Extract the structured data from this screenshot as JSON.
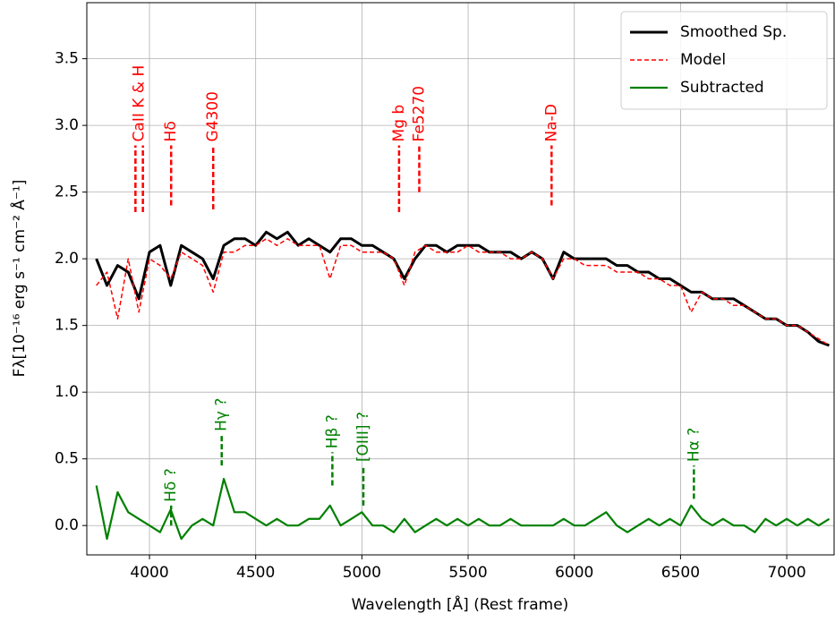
{
  "chart_data": {
    "type": "line",
    "xlabel": "Wavelength [Å] (Rest frame)",
    "ylabel": "Fλ[10⁻¹⁶ erg s⁻¹ cm⁻² Å⁻¹]",
    "xlim": [
      3705,
      7223
    ],
    "ylim": [
      -0.22,
      3.92
    ],
    "xticks": [
      4000,
      4500,
      5000,
      5500,
      6000,
      6500,
      7000
    ],
    "yticks": [
      {
        "value": 0,
        "label": "0.0"
      },
      0.5,
      {
        "value": 1,
        "label": "1.0"
      },
      1.5,
      {
        "value": 2,
        "label": "2.0"
      },
      2.5,
      {
        "value": 3,
        "label": "3.0"
      },
      3.5
    ],
    "grid": true,
    "legend": "upper right",
    "x": [
      3750,
      3800,
      3850,
      3900,
      3950,
      4000,
      4050,
      4100,
      4150,
      4200,
      4250,
      4300,
      4350,
      4400,
      4450,
      4500,
      4550,
      4600,
      4650,
      4700,
      4750,
      4800,
      4850,
      4900,
      4950,
      5000,
      5050,
      5100,
      5150,
      5200,
      5250,
      5300,
      5350,
      5400,
      5450,
      5500,
      5550,
      5600,
      5650,
      5700,
      5750,
      5800,
      5850,
      5900,
      5950,
      6000,
      6050,
      6100,
      6150,
      6200,
      6250,
      6300,
      6350,
      6400,
      6450,
      6500,
      6550,
      6600,
      6650,
      6700,
      6750,
      6800,
      6850,
      6900,
      6950,
      7000,
      7050,
      7100,
      7150,
      7200
    ],
    "series": [
      {
        "name": "Smoothed Sp.",
        "color": "#000000",
        "style": "solid",
        "width": 3,
        "values": [
          2.0,
          1.8,
          1.95,
          1.9,
          1.7,
          2.05,
          2.1,
          1.8,
          2.1,
          2.05,
          2.0,
          1.85,
          2.1,
          2.15,
          2.15,
          2.1,
          2.2,
          2.15,
          2.2,
          2.1,
          2.15,
          2.1,
          2.05,
          2.15,
          2.15,
          2.1,
          2.1,
          2.05,
          2.0,
          1.85,
          2.0,
          2.1,
          2.1,
          2.05,
          2.1,
          2.1,
          2.1,
          2.05,
          2.05,
          2.05,
          2.0,
          2.05,
          2.0,
          1.85,
          2.05,
          2.0,
          2.0,
          2.0,
          2.0,
          1.95,
          1.95,
          1.9,
          1.9,
          1.85,
          1.85,
          1.8,
          1.75,
          1.75,
          1.7,
          1.7,
          1.7,
          1.65,
          1.6,
          1.55,
          1.55,
          1.5,
          1.5,
          1.45,
          1.38,
          1.35
        ]
      },
      {
        "name": "Model",
        "color": "#ff0000",
        "style": "dashed",
        "width": 1.5,
        "values": [
          1.8,
          1.9,
          1.55,
          2.0,
          1.6,
          2.0,
          1.95,
          1.85,
          2.05,
          2.0,
          1.95,
          1.75,
          2.05,
          2.05,
          2.1,
          2.1,
          2.15,
          2.1,
          2.15,
          2.1,
          2.1,
          2.1,
          1.85,
          2.1,
          2.1,
          2.05,
          2.05,
          2.05,
          2.0,
          1.8,
          2.05,
          2.1,
          2.05,
          2.05,
          2.05,
          2.1,
          2.05,
          2.05,
          2.05,
          2.0,
          2.0,
          2.05,
          2.0,
          1.85,
          2.0,
          2.0,
          1.95,
          1.95,
          1.95,
          1.9,
          1.9,
          1.9,
          1.85,
          1.85,
          1.8,
          1.8,
          1.6,
          1.75,
          1.7,
          1.7,
          1.65,
          1.65,
          1.6,
          1.55,
          1.55,
          1.5,
          1.5,
          1.45,
          1.4,
          1.35
        ]
      },
      {
        "name": "Subtracted",
        "color": "#008000",
        "style": "solid",
        "width": 2.2,
        "values": [
          0.3,
          -0.1,
          0.25,
          0.1,
          0.05,
          0.0,
          -0.05,
          0.12,
          -0.1,
          0.0,
          0.05,
          0.0,
          0.35,
          0.1,
          0.1,
          0.05,
          0.0,
          0.05,
          0.0,
          0.0,
          0.05,
          0.05,
          0.15,
          0.0,
          0.05,
          0.1,
          0.0,
          0.0,
          -0.05,
          0.05,
          -0.05,
          0.0,
          0.05,
          0.0,
          0.05,
          0.0,
          0.05,
          0.0,
          0.0,
          0.05,
          0.0,
          0.0,
          0.0,
          0.0,
          0.05,
          0.0,
          0.0,
          0.05,
          0.1,
          0.0,
          -0.05,
          0.0,
          0.05,
          0.0,
          0.05,
          0.0,
          0.15,
          0.05,
          0.0,
          0.05,
          0.0,
          0.0,
          -0.05,
          0.05,
          0.0,
          0.05,
          0.0,
          0.05,
          0.0,
          0.05
        ]
      }
    ],
    "annotations": [
      {
        "label": "CaII K & H",
        "x": [
          3934,
          3969
        ],
        "y0": 2.35,
        "y1": 2.85,
        "color": "#ff0000"
      },
      {
        "label": "Hδ",
        "x": [
          4102
        ],
        "y0": 2.4,
        "y1": 2.85,
        "color": "#ff0000"
      },
      {
        "label": "G4300",
        "x": [
          4300
        ],
        "y0": 2.37,
        "y1": 2.85,
        "color": "#ff0000"
      },
      {
        "label": "Mg b",
        "x": [
          5175
        ],
        "y0": 2.35,
        "y1": 2.85,
        "color": "#ff0000"
      },
      {
        "label": "Fe5270",
        "x": [
          5270
        ],
        "y0": 2.5,
        "y1": 2.85,
        "color": "#ff0000"
      },
      {
        "label": "Na-D",
        "x": [
          5893
        ],
        "y0": 2.4,
        "y1": 2.85,
        "color": "#ff0000"
      },
      {
        "label": "Hδ ?",
        "x": [
          4102
        ],
        "y0": 0.0,
        "y1": 0.15,
        "color": "#008000"
      },
      {
        "label": "Hγ ?",
        "x": [
          4340
        ],
        "y0": 0.45,
        "y1": 0.68,
        "color": "#008000"
      },
      {
        "label": "Hβ ?",
        "x": [
          4861
        ],
        "y0": 0.3,
        "y1": 0.55,
        "color": "#008000"
      },
      {
        "label": "[OIII] ?",
        "x": [
          5007
        ],
        "y0": 0.15,
        "y1": 0.45,
        "color": "#008000"
      },
      {
        "label": "Hα ?",
        "x": [
          6563
        ],
        "y0": 0.2,
        "y1": 0.45,
        "color": "#008000"
      }
    ]
  }
}
